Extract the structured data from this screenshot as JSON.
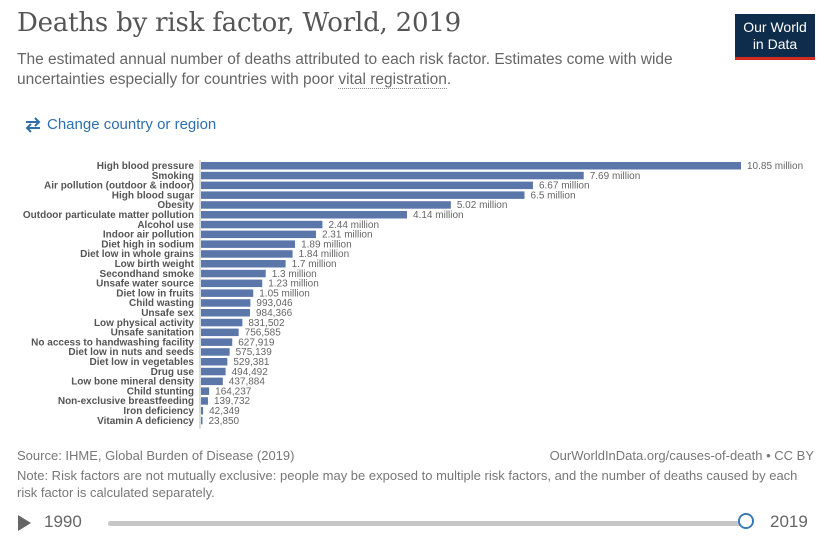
{
  "header": {
    "title": "Deaths by risk factor, World, 2019",
    "subtitle_pre": "The estimated annual number of deaths attributed to each risk factor. Estimates come with wide uncertainties especially for countries with poor ",
    "subtitle_link": "vital registration",
    "subtitle_post": ".",
    "logo_line1": "Our World",
    "logo_line2": "in Data"
  },
  "controls": {
    "change_country": "Change country or region"
  },
  "chart_data": {
    "type": "bar",
    "orientation": "horizontal",
    "title": "Deaths by risk factor, World, 2019",
    "bar_color": "#5b77a9",
    "categories": [
      "High blood pressure",
      "Smoking",
      "Air pollution (outdoor & indoor)",
      "High blood sugar",
      "Obesity",
      "Outdoor particulate matter pollution",
      "Alcohol use",
      "Indoor air pollution",
      "Diet high in sodium",
      "Diet low in whole grains",
      "Low birth weight",
      "Secondhand smoke",
      "Unsafe water source",
      "Diet low in fruits",
      "Child wasting",
      "Unsafe sex",
      "Low physical activity",
      "Unsafe sanitation",
      "No access to handwashing facility",
      "Diet low in nuts and seeds",
      "Diet low in vegetables",
      "Drug use",
      "Low bone mineral density",
      "Child stunting",
      "Non-exclusive breastfeeding",
      "Iron deficiency",
      "Vitamin A deficiency"
    ],
    "values": [
      10850000,
      7690000,
      6670000,
      6500000,
      5020000,
      4140000,
      2440000,
      2310000,
      1890000,
      1840000,
      1700000,
      1300000,
      1230000,
      1050000,
      993046,
      984366,
      831502,
      756585,
      627919,
      575139,
      529381,
      494492,
      437884,
      164237,
      139732,
      42349,
      23850
    ],
    "labels": [
      "10.85 million",
      "7.69 million",
      "6.67 million",
      "6.5 million",
      "5.02 million",
      "4.14 million",
      "2.44 million",
      "2.31 million",
      "1.89 million",
      "1.84 million",
      "1.7 million",
      "1.3 million",
      "1.23 million",
      "1.05 million",
      "993,046",
      "984,366",
      "831,502",
      "756,585",
      "627,919",
      "575,139",
      "529,381",
      "494,492",
      "437,884",
      "164,237",
      "139,732",
      "42,349",
      "23,850"
    ],
    "xlim": [
      0,
      10850000
    ]
  },
  "footer": {
    "source": "Source: IHME, Global Burden of Disease (2019)",
    "url": "OurWorldInData.org/causes-of-death • CC BY",
    "note": "Note: Risk factors are not mutually exclusive: people may be exposed to multiple risk factors, and the number of deaths caused by each risk factor is calculated separately."
  },
  "timeline": {
    "start_year": "1990",
    "end_year": "2019",
    "position": 1.0
  }
}
